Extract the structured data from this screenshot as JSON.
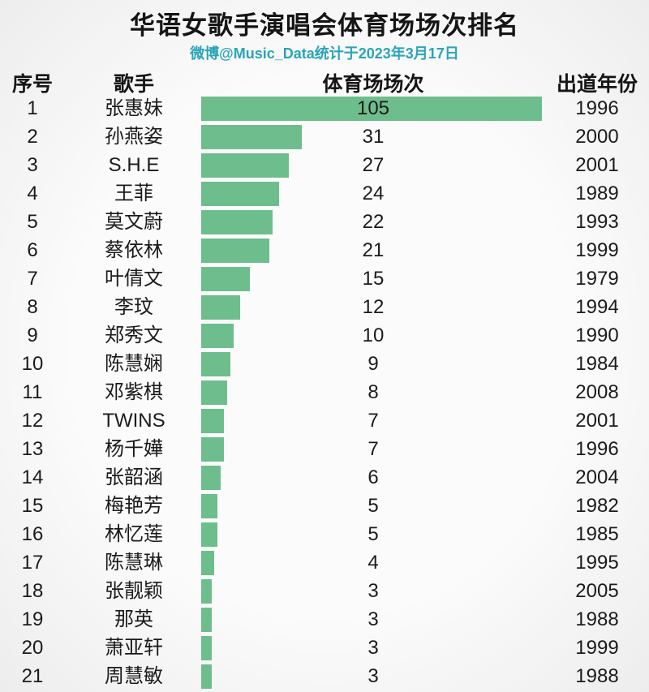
{
  "title": "华语女歌手演唱会体育场场次排名",
  "subtitle": "微博@Music_Data统计于2023年3月17日",
  "columns": {
    "rank": "序号",
    "singer": "歌手",
    "count": "体育场场次",
    "year": "出道年份"
  },
  "colors": {
    "bar": "#6dbe8c",
    "title": "#151515",
    "subtitle": "#2aa4b8",
    "text": "#1b1b1b",
    "background": "#f6f6f6"
  },
  "chart_data": {
    "type": "bar",
    "orientation": "horizontal",
    "title": "华语女歌手演唱会体育场场次排名",
    "subtitle": "微博@Music_Data统计于2023年3月17日",
    "categories": [
      "张惠妹",
      "孙燕姿",
      "S.H.E",
      "王菲",
      "莫文蔚",
      "蔡依林",
      "叶倩文",
      "李玟",
      "郑秀文",
      "陈慧娴",
      "邓紫棋",
      "TWINS",
      "杨千嬅",
      "张韶涵",
      "梅艳芳",
      "林忆莲",
      "陈慧琳",
      "张靓颖",
      "那英",
      "萧亚轩",
      "周慧敏"
    ],
    "values": [
      105,
      31,
      27,
      24,
      22,
      21,
      15,
      12,
      10,
      9,
      8,
      7,
      7,
      6,
      5,
      5,
      4,
      3,
      3,
      3,
      3
    ],
    "ranks": [
      1,
      2,
      3,
      4,
      5,
      6,
      7,
      8,
      9,
      10,
      11,
      12,
      13,
      14,
      15,
      16,
      17,
      18,
      19,
      20,
      21
    ],
    "debut_years": [
      1996,
      2000,
      2001,
      1989,
      1993,
      1999,
      1979,
      1994,
      1990,
      1984,
      2008,
      2001,
      1996,
      2004,
      1982,
      1985,
      1995,
      2005,
      1988,
      1999,
      1988
    ],
    "xlabel": "体育场场次",
    "ylabel": "歌手",
    "xlim": [
      0,
      105
    ],
    "grid": false,
    "legend": false,
    "bar_color": "#6dbe8c",
    "value_labels": "aligned in fixed column at chart center"
  }
}
